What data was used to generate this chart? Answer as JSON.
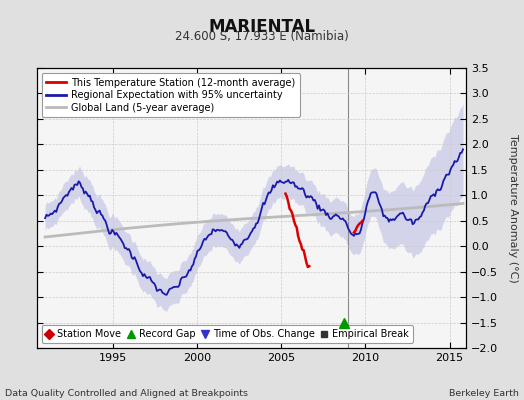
{
  "title": "MARIENTAL",
  "subtitle": "24.600 S, 17.933 E (Namibia)",
  "ylabel": "Temperature Anomaly (°C)",
  "xlabel_left": "Data Quality Controlled and Aligned at Breakpoints",
  "xlabel_right": "Berkeley Earth",
  "xlim": [
    1990.5,
    2016.0
  ],
  "ylim": [
    -2.0,
    3.5
  ],
  "yticks": [
    -2,
    -1.5,
    -1,
    -0.5,
    0,
    0.5,
    1,
    1.5,
    2,
    2.5,
    3,
    3.5
  ],
  "xticks": [
    1995,
    2000,
    2005,
    2010,
    2015
  ],
  "bg_color": "#e0e0e0",
  "plot_bg_color": "#f5f5f5",
  "vertical_line_x": 2009.0,
  "record_gap_x": 2008.75,
  "record_gap_y": -1.5,
  "blue_line_color": "#1a1aaa",
  "fill_color": "#aaaadd",
  "fill_alpha": 0.45,
  "red_line_color": "#dd0000",
  "gray_line_color": "#bbbbbb",
  "legend1_items": [
    {
      "label": "This Temperature Station (12-month average)",
      "color": "#dd0000",
      "lw": 2
    },
    {
      "label": "Regional Expectation with 95% uncertainty",
      "color": "#1a1aaa",
      "lw": 2
    },
    {
      "label": "Global Land (5-year average)",
      "color": "#bbbbbb",
      "lw": 2
    }
  ],
  "legend2_items": [
    {
      "label": "Station Move",
      "color": "#cc0000",
      "marker": "D"
    },
    {
      "label": "Record Gap",
      "color": "#009900",
      "marker": "^"
    },
    {
      "label": "Time of Obs. Change",
      "color": "#3333cc",
      "marker": "v"
    },
    {
      "label": "Empirical Break",
      "color": "#333333",
      "marker": "s"
    }
  ]
}
